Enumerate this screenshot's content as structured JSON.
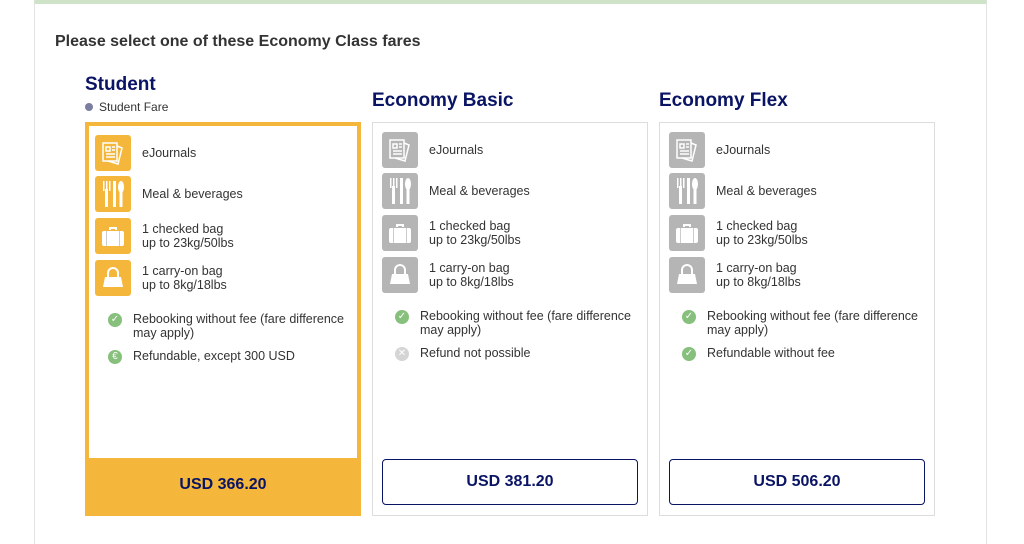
{
  "heading": "Please select one of these Economy Class fares",
  "fares": [
    {
      "name": "Student",
      "subtitle": "Student Fare",
      "features": [
        "eJournals",
        "Meal & beverages",
        "1 checked bag",
        "up to 23kg/50lbs",
        "1 carry-on bag",
        "up to 8kg/18lbs"
      ],
      "rebook": "Rebooking without fee (fare difference may apply)",
      "refund": "Refundable, except 300 USD",
      "refund_icon": "euro-icon",
      "price": "USD 366.20",
      "selected": true
    },
    {
      "name": "Economy Basic",
      "features": [
        "eJournals",
        "Meal & beverages",
        "1 checked bag",
        "up to 23kg/50lbs",
        "1 carry-on bag",
        "up to 8kg/18lbs"
      ],
      "rebook": "Rebooking without fee (fare difference may apply)",
      "refund": "Refund not possible",
      "refund_icon": "cross-icon",
      "price": "USD 381.20",
      "selected": false
    },
    {
      "name": "Economy Flex",
      "features": [
        "eJournals",
        "Meal & beverages",
        "1 checked bag",
        "up to 23kg/50lbs",
        "1 carry-on bag",
        "up to 8kg/18lbs"
      ],
      "rebook": "Rebooking without fee (fare difference may apply)",
      "refund": "Refundable without fee",
      "refund_icon": "check-icon",
      "price": "USD 506.20",
      "selected": false
    }
  ],
  "colors": {
    "accent": "#f5b73b",
    "navy": "#0a1464",
    "check": "#86c07c",
    "top_border": "#cfe3c9"
  }
}
